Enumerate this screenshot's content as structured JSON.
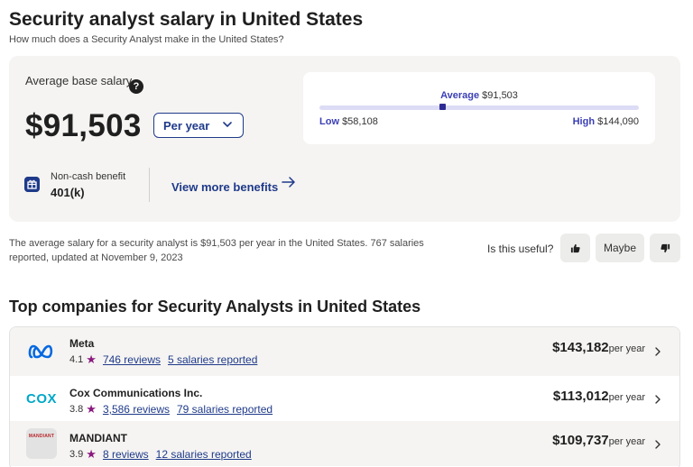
{
  "header": {
    "title": "Security analyst salary in United States",
    "subtitle": "How much does a Security Analyst make in the United States?"
  },
  "salary_card": {
    "avg_label": "Average base salary",
    "help_glyph": "?",
    "amount": "$91,503",
    "period": "Per year",
    "range": {
      "average_label": "Average",
      "average_value": "$91,503",
      "low_label": "Low",
      "low_value": "$58,108",
      "high_label": "High",
      "high_value": "$144,090",
      "average_position": 0.386
    },
    "benefit_label": "Non-cash benefit",
    "benefit_value": "401(k)",
    "more_benefits": "View more benefits"
  },
  "summary": "The average salary for a security analyst is $91,503 per year in the United States.  767 salaries reported, updated at November 9, 2023",
  "feedback": {
    "question": "Is this useful?",
    "maybe": "Maybe"
  },
  "companies": {
    "title": "Top companies for Security Analysts in United States",
    "items": [
      {
        "name": "Meta",
        "rating": "4.1",
        "reviews": "746 reviews",
        "salaries": "5 salaries reported",
        "pay": "$143,182",
        "period": "per year",
        "logo": "meta-logo-icon",
        "logo_color": "#0668e1"
      },
      {
        "name": "Cox Communications Inc.",
        "rating": "3.8",
        "reviews": "3,586 reviews",
        "salaries": "79 salaries reported",
        "pay": "$113,012",
        "period": "per year",
        "logo": "cox-logo-icon",
        "logo_text": "COX",
        "logo_color": "#00a8c8"
      },
      {
        "name": "MANDIANT",
        "rating": "3.9",
        "reviews": "8 reviews",
        "salaries": "12 salaries reported",
        "pay": "$109,737",
        "period": "per year",
        "logo": "mandiant-logo-icon",
        "logo_text": "MANDIANT",
        "logo_color": "#b8262b"
      }
    ]
  },
  "colors": {
    "accent": "#1f3a8a",
    "range_accent": "#3b3fb5",
    "star": "#8a1a7f",
    "card_bg": "#f5f4f2"
  }
}
